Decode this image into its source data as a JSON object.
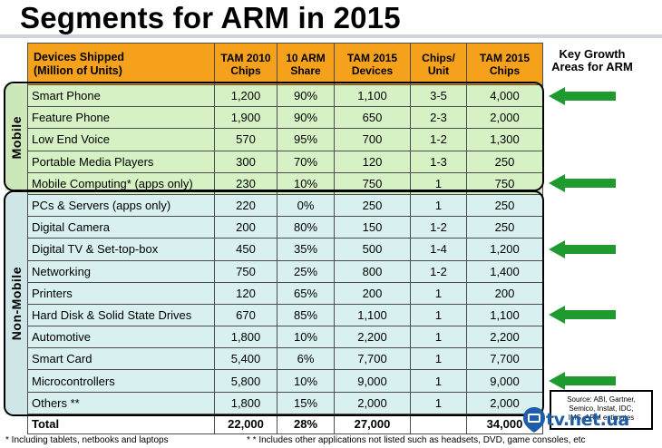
{
  "title": "Segments for ARM in 2015",
  "headers": [
    "Devices Shipped\n(Million of Units)",
    "TAM 2010\nChips",
    "10 ARM\nShare",
    "TAM 2015\nDevices",
    "Chips/\nUnit",
    "TAM 2015\nChips"
  ],
  "group_labels": {
    "mobile": "Mobile",
    "nonmobile": "Non-Mobile"
  },
  "rows": [
    {
      "group": "mobile",
      "name": "Smart Phone",
      "tam2010": "1,200",
      "share": "90%",
      "tam2015_devices": "1,100",
      "chips_per_unit": "3-5",
      "tam2015_chips": "4,000",
      "key_growth": true
    },
    {
      "group": "mobile",
      "name": "Feature Phone",
      "tam2010": "1,900",
      "share": "90%",
      "tam2015_devices": "650",
      "chips_per_unit": "2-3",
      "tam2015_chips": "2,000",
      "key_growth": false
    },
    {
      "group": "mobile",
      "name": "Low End Voice",
      "tam2010": "570",
      "share": "95%",
      "tam2015_devices": "700",
      "chips_per_unit": "1-2",
      "tam2015_chips": "1,300",
      "key_growth": false
    },
    {
      "group": "mobile",
      "name": "Portable Media Players",
      "tam2010": "300",
      "share": "70%",
      "tam2015_devices": "120",
      "chips_per_unit": "1-3",
      "tam2015_chips": "250",
      "key_growth": false
    },
    {
      "group": "mobile",
      "name": "Mobile Computing* (apps only)",
      "tam2010": "230",
      "share": "10%",
      "tam2015_devices": "750",
      "chips_per_unit": "1",
      "tam2015_chips": "750",
      "key_growth": true
    },
    {
      "group": "nonmobile",
      "name": "PCs & Servers (apps only)",
      "tam2010": "220",
      "share": "0%",
      "tam2015_devices": "250",
      "chips_per_unit": "1",
      "tam2015_chips": "250",
      "key_growth": false
    },
    {
      "group": "nonmobile",
      "name": "Digital Camera",
      "tam2010": "200",
      "share": "80%",
      "tam2015_devices": "150",
      "chips_per_unit": "1-2",
      "tam2015_chips": "250",
      "key_growth": false
    },
    {
      "group": "nonmobile",
      "name": "Digital TV & Set-top-box",
      "tam2010": "450",
      "share": "35%",
      "tam2015_devices": "500",
      "chips_per_unit": "1-4",
      "tam2015_chips": "1,200",
      "key_growth": true
    },
    {
      "group": "nonmobile",
      "name": "Networking",
      "tam2010": "750",
      "share": "25%",
      "tam2015_devices": "800",
      "chips_per_unit": "1-2",
      "tam2015_chips": "1,400",
      "key_growth": false
    },
    {
      "group": "nonmobile",
      "name": "Printers",
      "tam2010": "120",
      "share": "65%",
      "tam2015_devices": "200",
      "chips_per_unit": "1",
      "tam2015_chips": "200",
      "key_growth": false
    },
    {
      "group": "nonmobile",
      "name": "Hard Disk & Solid State Drives",
      "tam2010": "670",
      "share": "85%",
      "tam2015_devices": "1,100",
      "chips_per_unit": "1",
      "tam2015_chips": "1,100",
      "key_growth": true
    },
    {
      "group": "nonmobile",
      "name": "Automotive",
      "tam2010": "1,800",
      "share": "10%",
      "tam2015_devices": "2,200",
      "chips_per_unit": "1",
      "tam2015_chips": "2,200",
      "key_growth": false
    },
    {
      "group": "nonmobile",
      "name": "Smart Card",
      "tam2010": "5,400",
      "share": "6%",
      "tam2015_devices": "7,700",
      "chips_per_unit": "1",
      "tam2015_chips": "7,700",
      "key_growth": false
    },
    {
      "group": "nonmobile",
      "name": "Microcontrollers",
      "tam2010": "5,800",
      "share": "10%",
      "tam2015_devices": "9,000",
      "chips_per_unit": "1",
      "tam2015_chips": "9,000",
      "key_growth": true
    },
    {
      "group": "nonmobile",
      "name": "Others **",
      "tam2010": "1,800",
      "share": "15%",
      "tam2015_devices": "2,000",
      "chips_per_unit": "1",
      "tam2015_chips": "2,000",
      "key_growth": false
    }
  ],
  "total": {
    "name": "Total",
    "tam2010": "22,000",
    "share": "28%",
    "tam2015_devices": "27,000",
    "chips_per_unit": "",
    "tam2015_chips": "34,000"
  },
  "key_growth_label": "Key Growth\nAreas for ARM",
  "source": "Source: ABI, Gartner,\nSemico, Instat, IDC,\nIMS, ARM estimates",
  "footnotes": {
    "left": "* Including tablets, netbooks and laptops",
    "right": "* * Includes other applications not listed such as headsets, DVD, game consoles, etc"
  },
  "watermark": "tv.net.ua",
  "colors": {
    "header_bg": "#f5a11c",
    "mobile_bg": "#d6f2c4",
    "nonmobile_bg": "#d9f0f0",
    "arrow": "#1f9a2e"
  },
  "icons": {
    "arrow": "left-arrow-icon",
    "watermark": "tv-logo-icon"
  }
}
